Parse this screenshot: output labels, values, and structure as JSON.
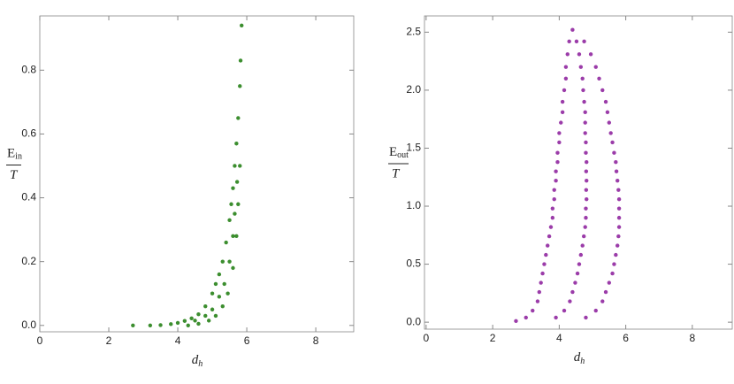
{
  "chart_data": [
    {
      "type": "scatter",
      "color": "#1a7a0a",
      "x_label": "d",
      "x_label_sub": "h",
      "y_label_num": "E",
      "y_label_sub": "in",
      "y_label_den": "T",
      "xlim": [
        0,
        9.1
      ],
      "ylim": [
        -0.02,
        0.97
      ],
      "xticks": [
        0,
        2,
        4,
        6,
        8
      ],
      "yticks": [
        {
          "value": 0,
          "label": "0.0"
        },
        0.2,
        0.4,
        0.6,
        0.8
      ],
      "x": [
        2.7,
        3.2,
        3.5,
        3.8,
        4.0,
        4.2,
        4.4,
        4.6,
        4.8,
        5.0,
        5.1,
        5.2,
        5.3,
        5.4,
        5.5,
        5.55,
        5.6,
        5.65,
        5.7,
        5.75,
        5.8,
        5.82,
        5.85,
        4.3,
        4.6,
        4.9,
        5.1,
        5.3,
        5.45,
        5.6,
        5.7,
        5.75,
        5.8,
        4.5,
        4.8,
        5.0,
        5.2,
        5.35,
        5.5,
        5.6,
        5.65,
        5.72
      ],
      "y": [
        0.0,
        0.0,
        0.001,
        0.004,
        0.008,
        0.014,
        0.022,
        0.035,
        0.06,
        0.1,
        0.13,
        0.16,
        0.2,
        0.26,
        0.33,
        0.38,
        0.43,
        0.5,
        0.57,
        0.65,
        0.75,
        0.83,
        0.94,
        0.0,
        0.005,
        0.015,
        0.03,
        0.06,
        0.1,
        0.18,
        0.28,
        0.38,
        0.5,
        0.015,
        0.03,
        0.05,
        0.09,
        0.13,
        0.2,
        0.28,
        0.35,
        0.45
      ]
    },
    {
      "type": "scatter",
      "color": "#8a1a9a",
      "x_label": "d",
      "x_label_sub": "h",
      "y_label_num": "E",
      "y_label_sub": "out",
      "y_label_den": "T",
      "xlim": [
        -0.05,
        9.2
      ],
      "ylim": [
        -0.06,
        2.64
      ],
      "xticks": [
        0,
        2,
        4,
        6,
        8
      ],
      "yticks": [
        {
          "value": 0,
          "label": "0.0"
        },
        0.5,
        {
          "value": 1,
          "label": "1.0"
        },
        1.5,
        {
          "value": 2,
          "label": "2.0"
        },
        2.5
      ],
      "x": [
        4.3,
        4.52,
        4.75,
        4.25,
        4.6,
        4.95,
        4.2,
        4.65,
        5.1,
        4.2,
        4.7,
        5.2,
        4.15,
        4.72,
        5.3,
        4.1,
        4.75,
        5.4,
        4.1,
        4.78,
        5.45,
        4.05,
        4.78,
        5.5,
        4.0,
        4.78,
        5.55,
        4.0,
        4.8,
        5.6,
        3.95,
        4.8,
        5.65,
        3.95,
        4.82,
        5.7,
        3.9,
        4.81,
        5.72,
        3.9,
        4.82,
        5.75,
        3.85,
        4.81,
        5.78,
        3.85,
        4.82,
        5.8,
        3.8,
        4.8,
        5.8,
        3.8,
        4.8,
        5.8,
        3.75,
        4.78,
        5.8,
        3.7,
        4.74,
        5.78,
        3.65,
        4.7,
        5.75,
        3.6,
        4.65,
        5.7,
        3.55,
        4.6,
        5.65,
        3.5,
        4.55,
        5.6,
        3.45,
        4.48,
        5.5,
        3.4,
        4.4,
        5.4,
        3.35,
        4.32,
        5.3,
        3.2,
        4.15,
        5.1,
        3.0,
        3.9,
        4.8,
        2.7,
        4.4
      ],
      "y": [
        2.42,
        2.42,
        2.42,
        2.31,
        2.31,
        2.31,
        2.2,
        2.2,
        2.2,
        2.1,
        2.1,
        2.1,
        2.0,
        2.0,
        2.0,
        1.9,
        1.9,
        1.9,
        1.81,
        1.81,
        1.81,
        1.72,
        1.72,
        1.72,
        1.63,
        1.63,
        1.63,
        1.55,
        1.55,
        1.55,
        1.46,
        1.46,
        1.46,
        1.38,
        1.38,
        1.38,
        1.3,
        1.3,
        1.3,
        1.22,
        1.22,
        1.22,
        1.14,
        1.14,
        1.14,
        1.06,
        1.06,
        1.06,
        0.98,
        0.98,
        0.98,
        0.9,
        0.9,
        0.9,
        0.82,
        0.82,
        0.82,
        0.74,
        0.74,
        0.74,
        0.66,
        0.66,
        0.66,
        0.58,
        0.58,
        0.58,
        0.5,
        0.5,
        0.5,
        0.42,
        0.42,
        0.42,
        0.34,
        0.34,
        0.34,
        0.26,
        0.26,
        0.26,
        0.18,
        0.18,
        0.18,
        0.1,
        0.1,
        0.1,
        0.04,
        0.04,
        0.04,
        0.01,
        2.52
      ]
    }
  ]
}
